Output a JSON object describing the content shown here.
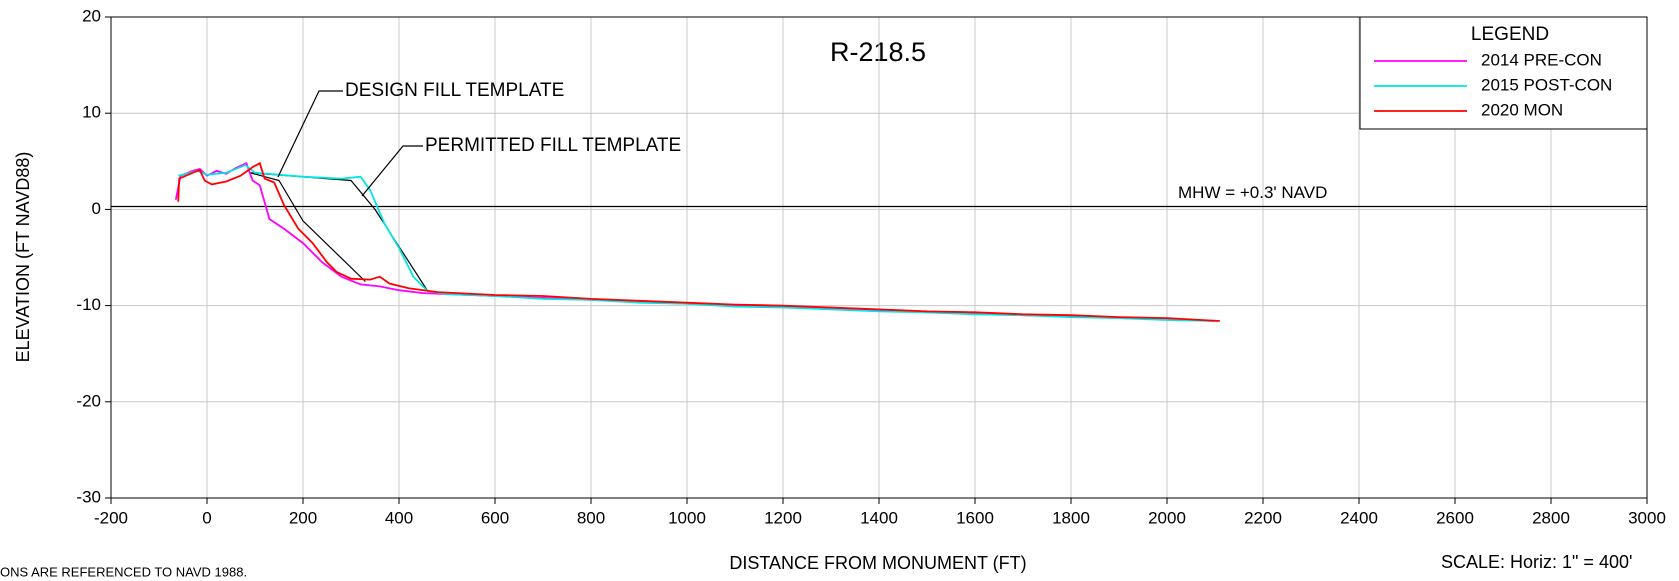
{
  "chart_data": {
    "type": "line",
    "title": "R-218.5",
    "x_label": "DISTANCE FROM MONUMENT (FT)",
    "y_label": "ELEVATION (FT NAVD88)",
    "xlim": [
      -200,
      3000
    ],
    "ylim": [
      -30,
      20
    ],
    "xticks": [
      -200,
      0,
      200,
      400,
      600,
      800,
      1000,
      1200,
      1400,
      1600,
      1800,
      2000,
      2200,
      2400,
      2600,
      2800,
      3000
    ],
    "yticks": [
      -30,
      -20,
      -10,
      0,
      10,
      20
    ],
    "grid": true,
    "legend_title": "LEGEND",
    "legend_position": "upper right",
    "mhw": {
      "value": 0.3,
      "label": "MHW = +0.3' NAVD"
    },
    "series": [
      {
        "name": "2014 PRE-CON",
        "color": "#ff00ff",
        "x": [
          -65,
          -55,
          -30,
          -15,
          0,
          20,
          40,
          60,
          82,
          95,
          110,
          130,
          160,
          200,
          240,
          280,
          320,
          360,
          400,
          450,
          500,
          600,
          700,
          800,
          900,
          1000,
          1100,
          1200,
          1300,
          1400,
          1500,
          1600,
          1700,
          1800,
          1900,
          2000,
          2100
        ],
        "values": [
          1,
          3.5,
          4,
          4.2,
          3.5,
          4,
          3.7,
          4.3,
          4.8,
          3,
          2.5,
          -1,
          -2,
          -3.5,
          -5.5,
          -7,
          -7.8,
          -8,
          -8.4,
          -8.7,
          -8.8,
          -9,
          -9.2,
          -9.4,
          -9.6,
          -9.8,
          -10,
          -10.1,
          -10.3,
          -10.5,
          -10.7,
          -10.8,
          -11,
          -11.1,
          -11.3,
          -11.4,
          -11.6
        ]
      },
      {
        "name": "2015 POST-CON",
        "color": "#00e5e5",
        "x": [
          -60,
          -20,
          0,
          40,
          80,
          100,
          200,
          280,
          320,
          340,
          370,
          400,
          430,
          460,
          500,
          600,
          700,
          800,
          900,
          1000,
          1100,
          1200,
          1300,
          1400,
          1500,
          1600,
          1700,
          1800,
          1900,
          2000,
          2100
        ],
        "values": [
          3.5,
          4,
          3.6,
          3.8,
          4.6,
          3.8,
          3.4,
          3.2,
          3.4,
          2,
          -1.5,
          -4,
          -7,
          -8.5,
          -8.8,
          -9,
          -9.3,
          -9.4,
          -9.7,
          -9.8,
          -10.1,
          -10.2,
          -10.4,
          -10.6,
          -10.7,
          -10.9,
          -11,
          -11.2,
          -11.3,
          -11.5,
          -11.6
        ]
      },
      {
        "name": "2020 MON",
        "color": "#ff0000",
        "x": [
          -60,
          -58,
          -30,
          -15,
          -5,
          10,
          40,
          70,
          95,
          110,
          120,
          140,
          160,
          190,
          220,
          250,
          270,
          300,
          340,
          360,
          380,
          420,
          480,
          600,
          700,
          800,
          900,
          1000,
          1100,
          1200,
          1300,
          1400,
          1500,
          1600,
          1700,
          1800,
          1900,
          2000,
          2110
        ],
        "values": [
          0.8,
          3.2,
          3.8,
          4.1,
          3,
          2.6,
          2.9,
          3.5,
          4.4,
          4.8,
          3.2,
          2.8,
          0.5,
          -2,
          -3.5,
          -5.5,
          -6.5,
          -7.2,
          -7.3,
          -7,
          -7.7,
          -8.2,
          -8.6,
          -8.9,
          -9,
          -9.3,
          -9.5,
          -9.7,
          -9.9,
          -10,
          -10.2,
          -10.4,
          -10.6,
          -10.7,
          -10.9,
          -11,
          -11.2,
          -11.3,
          -11.6
        ]
      }
    ],
    "templates": [
      {
        "name": "DESIGN FILL TEMPLATE",
        "color": "#000000",
        "x": [
          90,
          150,
          200,
          330
        ],
        "values": [
          3.8,
          3,
          -1.2,
          -7.5
        ]
      },
      {
        "name": "PERMITTED FILL TEMPLATE",
        "color": "#000000",
        "x": [
          90,
          300,
          350,
          460
        ],
        "values": [
          3.8,
          3,
          0,
          -8.5
        ]
      }
    ],
    "notes": [
      "ONS ARE REFERENCED TO NAVD 1988.",
      "SCALE:  Horiz: 1\" = 400'"
    ]
  }
}
